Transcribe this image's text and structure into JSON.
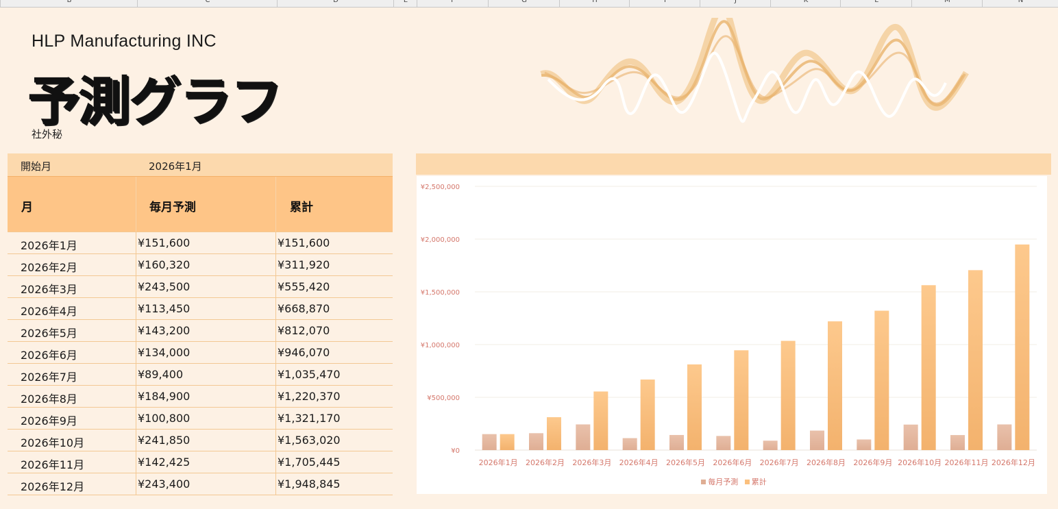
{
  "sheet": {
    "column_headers": [
      "B",
      "C",
      "D",
      "E",
      "F",
      "G",
      "H",
      "I",
      "J",
      "K",
      "L",
      "M",
      "N"
    ]
  },
  "header": {
    "company": "HLP Manufacturing INC",
    "title": "予測グラフ",
    "confidential": "社外秘"
  },
  "table": {
    "start_label": "開始月",
    "start_value": "2026年1月",
    "columns": [
      "月",
      "毎月予測",
      "累計"
    ],
    "rows": [
      [
        "2026年1月",
        "¥151,600",
        "¥151,600"
      ],
      [
        "2026年2月",
        "¥160,320",
        "¥311,920"
      ],
      [
        "2026年3月",
        "¥243,500",
        "¥555,420"
      ],
      [
        "2026年4月",
        "¥113,450",
        "¥668,870"
      ],
      [
        "2026年5月",
        "¥143,200",
        "¥812,070"
      ],
      [
        "2026年6月",
        "¥134,000",
        "¥946,070"
      ],
      [
        "2026年7月",
        "¥89,400",
        "¥1,035,470"
      ],
      [
        "2026年8月",
        "¥184,900",
        "¥1,220,370"
      ],
      [
        "2026年9月",
        "¥100,800",
        "¥1,321,170"
      ],
      [
        "2026年10月",
        "¥241,850",
        "¥1,563,020"
      ],
      [
        "2026年11月",
        "¥142,425",
        "¥1,705,445"
      ],
      [
        "2026年12月",
        "¥243,400",
        "¥1,948,845"
      ]
    ]
  },
  "colors": {
    "monthly": "#dfae94",
    "cumulative": "#fbc07e",
    "axis_text": "#d4766a"
  },
  "chart_data": {
    "type": "bar",
    "categories": [
      "2026年1月",
      "2026年2月",
      "2026年3月",
      "2026年4月",
      "2026年5月",
      "2026年6月",
      "2026年7月",
      "2026年8月",
      "2026年9月",
      "2026年10月",
      "2026年11月",
      "2026年12月"
    ],
    "series": [
      {
        "name": "毎月予測",
        "values": [
          151600,
          160320,
          243500,
          113450,
          143200,
          134000,
          89400,
          184900,
          100800,
          241850,
          142425,
          243400
        ]
      },
      {
        "name": "累計",
        "values": [
          151600,
          311920,
          555420,
          668870,
          812070,
          946070,
          1035470,
          1220370,
          1321170,
          1563020,
          1705445,
          1948845
        ]
      }
    ],
    "yticks": [
      "¥0",
      "¥500,000",
      "¥1,000,000",
      "¥1,500,000",
      "¥2,000,000",
      "¥2,500,000"
    ],
    "ylim": [
      0,
      2500000
    ],
    "grid": true,
    "legend": "bottom"
  }
}
